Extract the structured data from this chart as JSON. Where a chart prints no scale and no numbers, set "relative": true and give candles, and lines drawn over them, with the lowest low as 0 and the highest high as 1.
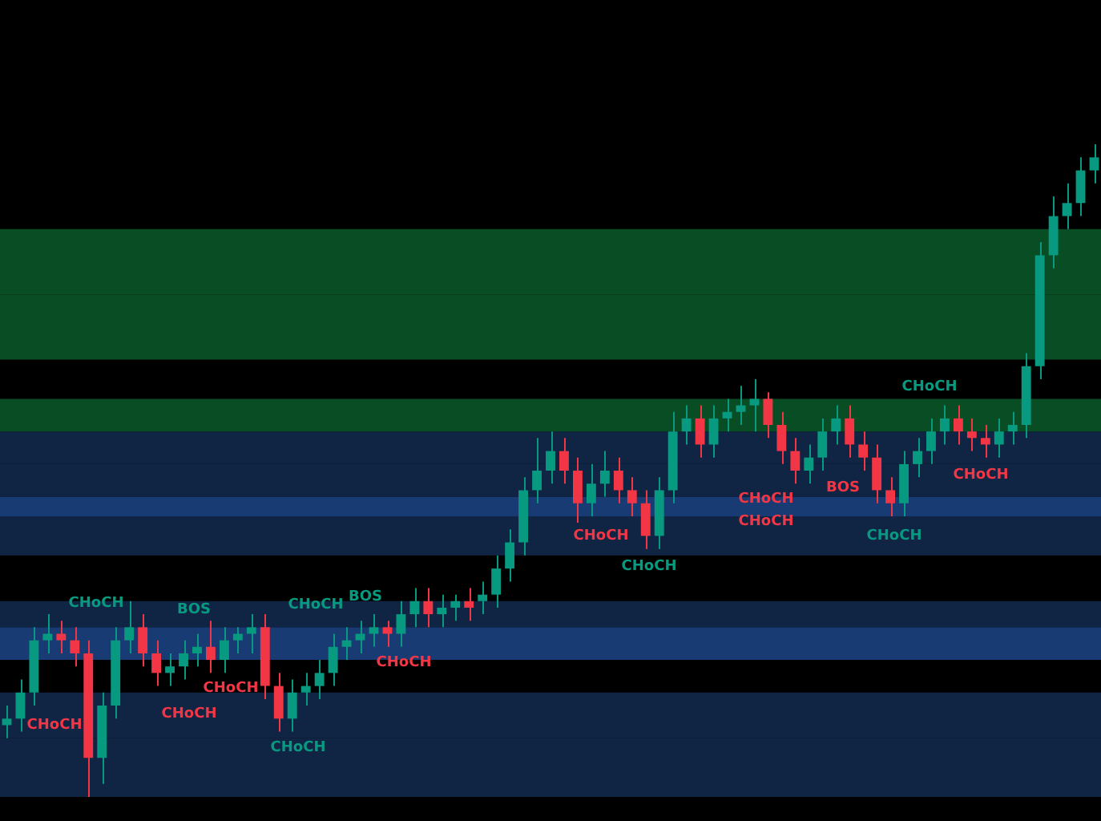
{
  "chart_data": {
    "type": "candlestick",
    "relative": true,
    "legend": false,
    "categories": [
      null,
      null,
      null,
      null,
      null,
      null,
      null,
      null,
      null,
      null,
      null,
      null,
      null,
      null,
      null,
      null,
      null,
      null,
      null,
      null,
      null,
      null,
      null,
      null,
      null,
      null,
      null,
      null,
      null,
      null,
      null,
      null,
      null,
      null,
      null,
      null,
      null,
      null,
      null,
      null,
      null,
      null,
      null,
      null,
      null,
      null,
      null,
      null,
      null,
      null,
      null,
      null,
      null,
      null,
      null,
      null,
      null,
      null,
      null,
      null,
      null,
      null,
      null,
      null,
      null,
      null,
      null,
      null,
      null,
      null,
      null,
      null,
      null,
      null,
      null,
      null,
      null,
      null,
      null,
      null,
      null
    ],
    "ohlc": [
      [
        0.11,
        0.14,
        0.09,
        0.12
      ],
      [
        0.12,
        0.18,
        0.1,
        0.16
      ],
      [
        0.16,
        0.26,
        0.14,
        0.24
      ],
      [
        0.24,
        0.28,
        0.22,
        0.25
      ],
      [
        0.25,
        0.27,
        0.22,
        0.24
      ],
      [
        0.24,
        0.26,
        0.2,
        0.22
      ],
      [
        0.22,
        0.24,
        0,
        0.06
      ],
      [
        0.06,
        0.16,
        0.02,
        0.14
      ],
      [
        0.14,
        0.26,
        0.12,
        0.24
      ],
      [
        0.24,
        0.3,
        0.22,
        0.26
      ],
      [
        0.26,
        0.28,
        0.2,
        0.22
      ],
      [
        0.22,
        0.24,
        0.17,
        0.19
      ],
      [
        0.19,
        0.22,
        0.17,
        0.2
      ],
      [
        0.2,
        0.24,
        0.18,
        0.22
      ],
      [
        0.22,
        0.25,
        0.2,
        0.23
      ],
      [
        0.23,
        0.27,
        0.19,
        0.21
      ],
      [
        0.21,
        0.26,
        0.19,
        0.24
      ],
      [
        0.24,
        0.26,
        0.22,
        0.25
      ],
      [
        0.25,
        0.28,
        0.22,
        0.26
      ],
      [
        0.26,
        0.28,
        0.15,
        0.17
      ],
      [
        0.17,
        0.19,
        0.1,
        0.12
      ],
      [
        0.12,
        0.18,
        0.1,
        0.16
      ],
      [
        0.16,
        0.19,
        0.14,
        0.17
      ],
      [
        0.17,
        0.21,
        0.15,
        0.19
      ],
      [
        0.19,
        0.25,
        0.17,
        0.23
      ],
      [
        0.23,
        0.26,
        0.21,
        0.24
      ],
      [
        0.24,
        0.27,
        0.22,
        0.25
      ],
      [
        0.25,
        0.28,
        0.23,
        0.26
      ],
      [
        0.26,
        0.27,
        0.23,
        0.25
      ],
      [
        0.25,
        0.3,
        0.23,
        0.28
      ],
      [
        0.28,
        0.32,
        0.26,
        0.3
      ],
      [
        0.3,
        0.32,
        0.26,
        0.28
      ],
      [
        0.28,
        0.31,
        0.26,
        0.29
      ],
      [
        0.29,
        0.31,
        0.27,
        0.3
      ],
      [
        0.3,
        0.32,
        0.27,
        0.29
      ],
      [
        0.3,
        0.33,
        0.28,
        0.31
      ],
      [
        0.31,
        0.37,
        0.29,
        0.35
      ],
      [
        0.35,
        0.41,
        0.33,
        0.39
      ],
      [
        0.39,
        0.49,
        0.37,
        0.47
      ],
      [
        0.47,
        0.55,
        0.45,
        0.5
      ],
      [
        0.5,
        0.56,
        0.48,
        0.53
      ],
      [
        0.53,
        0.55,
        0.48,
        0.5
      ],
      [
        0.5,
        0.52,
        0.42,
        0.45
      ],
      [
        0.45,
        0.51,
        0.43,
        0.48
      ],
      [
        0.48,
        0.53,
        0.46,
        0.5
      ],
      [
        0.5,
        0.52,
        0.45,
        0.47
      ],
      [
        0.47,
        0.49,
        0.43,
        0.45
      ],
      [
        0.45,
        0.47,
        0.38,
        0.4
      ],
      [
        0.4,
        0.49,
        0.38,
        0.47
      ],
      [
        0.47,
        0.59,
        0.45,
        0.56
      ],
      [
        0.56,
        0.6,
        0.54,
        0.58
      ],
      [
        0.58,
        0.6,
        0.52,
        0.54
      ],
      [
        0.54,
        0.6,
        0.52,
        0.58
      ],
      [
        0.58,
        0.61,
        0.56,
        0.59
      ],
      [
        0.59,
        0.63,
        0.57,
        0.6
      ],
      [
        0.6,
        0.64,
        0.56,
        0.61
      ],
      [
        0.61,
        0.62,
        0.55,
        0.57
      ],
      [
        0.57,
        0.59,
        0.51,
        0.53
      ],
      [
        0.53,
        0.55,
        0.48,
        0.5
      ],
      [
        0.5,
        0.54,
        0.48,
        0.52
      ],
      [
        0.52,
        0.58,
        0.5,
        0.56
      ],
      [
        0.56,
        0.6,
        0.54,
        0.58
      ],
      [
        0.58,
        0.6,
        0.52,
        0.54
      ],
      [
        0.54,
        0.56,
        0.5,
        0.52
      ],
      [
        0.52,
        0.54,
        0.45,
        0.47
      ],
      [
        0.47,
        0.49,
        0.43,
        0.45
      ],
      [
        0.45,
        0.53,
        0.43,
        0.51
      ],
      [
        0.51,
        0.55,
        0.49,
        0.53
      ],
      [
        0.53,
        0.58,
        0.51,
        0.56
      ],
      [
        0.56,
        0.6,
        0.54,
        0.58
      ],
      [
        0.58,
        0.6,
        0.54,
        0.56
      ],
      [
        0.56,
        0.58,
        0.53,
        0.55
      ],
      [
        0.55,
        0.57,
        0.52,
        0.54
      ],
      [
        0.54,
        0.58,
        0.52,
        0.56
      ],
      [
        0.56,
        0.59,
        0.54,
        0.57
      ],
      [
        0.57,
        0.68,
        0.55,
        0.66
      ],
      [
        0.66,
        0.85,
        0.64,
        0.83
      ],
      [
        0.83,
        0.92,
        0.81,
        0.89
      ],
      [
        0.89,
        0.94,
        0.87,
        0.91
      ],
      [
        0.91,
        0.98,
        0.89,
        0.96
      ],
      [
        0.96,
        1,
        0.94,
        0.98
      ]
    ],
    "bands": [
      {
        "axis": "y",
        "from": 0,
        "to": 0.09,
        "color": "#132a4f"
      },
      {
        "axis": "y",
        "from": 0.09,
        "to": 0.16,
        "color": "#132a4f"
      },
      {
        "axis": "y",
        "from": 0.21,
        "to": 0.26,
        "color": "#1c4587"
      },
      {
        "axis": "y",
        "from": 0.26,
        "to": 0.3,
        "color": "#132a4f"
      },
      {
        "axis": "y",
        "from": 0.37,
        "to": 0.43,
        "color": "#132a4f"
      },
      {
        "axis": "y",
        "from": 0.43,
        "to": 0.46,
        "color": "#1c4587"
      },
      {
        "axis": "y",
        "from": 0.46,
        "to": 0.51,
        "color": "#132a4f"
      },
      {
        "axis": "y",
        "from": 0.51,
        "to": 0.56,
        "color": "#132a4f"
      },
      {
        "axis": "y",
        "from": 0.56,
        "to": 0.61,
        "color": "#0b5a2c"
      },
      {
        "axis": "y",
        "from": 0.67,
        "to": 0.77,
        "color": "#0b5a2c"
      },
      {
        "axis": "y",
        "from": 0.77,
        "to": 0.87,
        "color": "#0b5a2c"
      }
    ],
    "annotations": [
      "CHoCH",
      "CHoCH",
      "BOS",
      "CHoCH",
      "CHoCH",
      "CHoCH",
      "CHoCH",
      "BOS",
      "CHoCH",
      "CHoCH",
      "CHoCH",
      "CHoCH",
      "CHoCH",
      "BOS",
      "CHoCH",
      "CHoCH",
      "CHoCH"
    ]
  }
}
